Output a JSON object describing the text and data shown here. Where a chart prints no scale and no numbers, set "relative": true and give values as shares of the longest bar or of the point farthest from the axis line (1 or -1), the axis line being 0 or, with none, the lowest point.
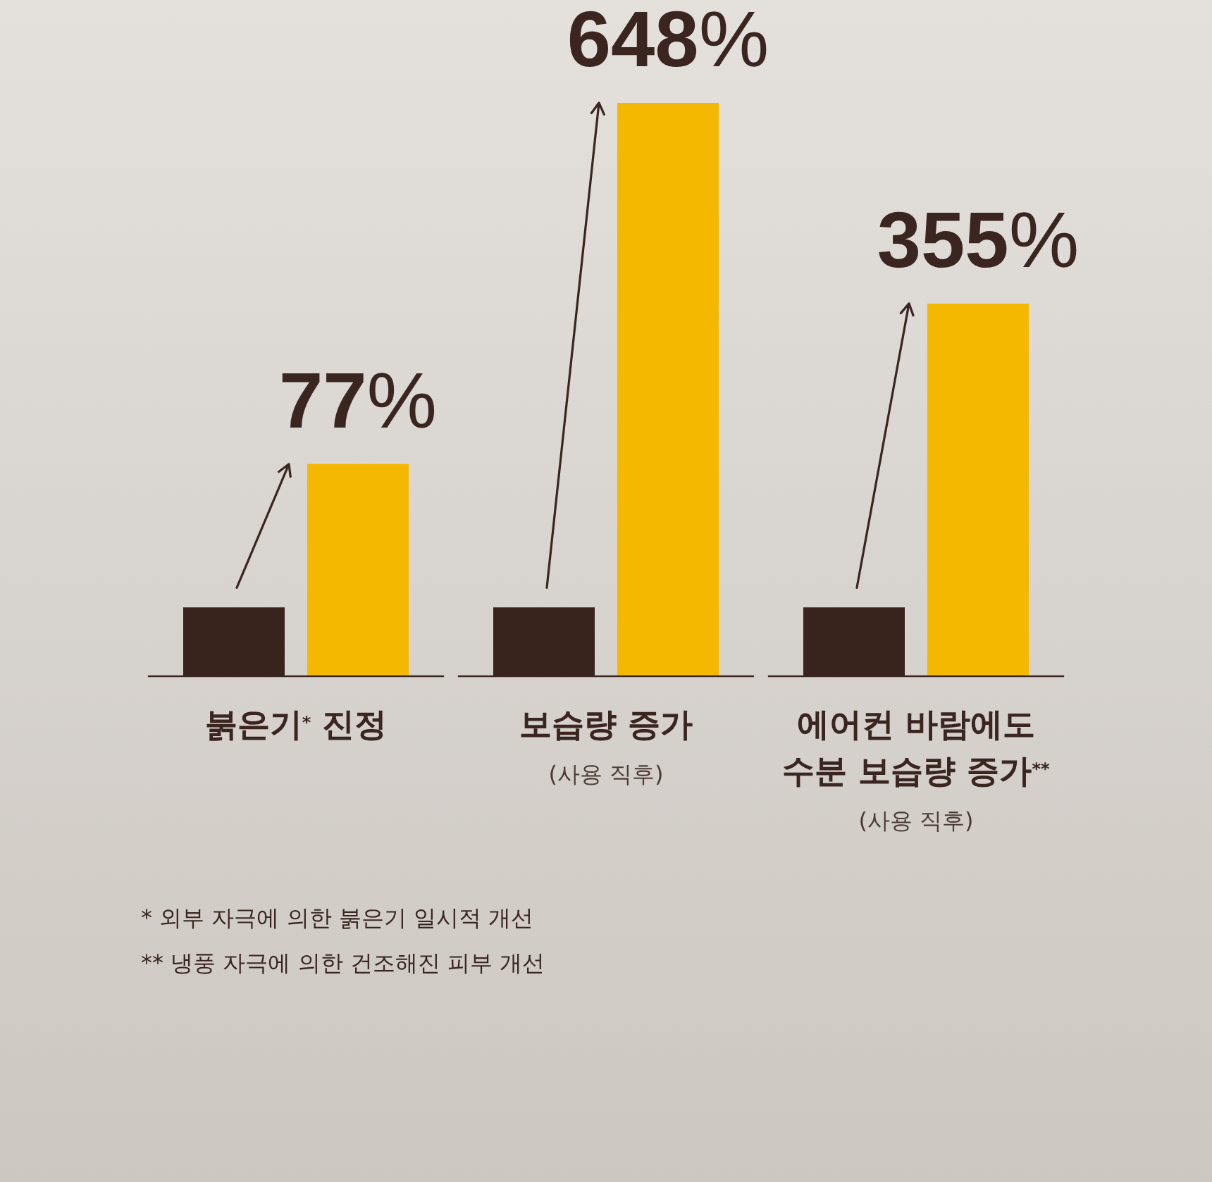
{
  "chart_data": {
    "type": "bar",
    "relative": true,
    "categories": [
      "붉은기$^{*}$ 진정",
      "보습량 증가\n(사용 직후)",
      "에어컨 바람에도\n수분 보습량 증가$^{**}$\n(사용 직후)"
    ],
    "series": [
      {
        "color": "#38231d",
        "values": [
          0.12,
          0.12,
          0.12
        ]
      },
      {
        "color": "#f5b800",
        "values": [
          0.37,
          1,
          0.65
        ]
      }
    ],
    "annotations": [
      "77%",
      "648%",
      "355%",
      "* 외부 자극에 의한 붉은기 일시적 개선",
      "** 냉풍 자극에 의한 건조해진 피부 개선"
    ]
  }
}
